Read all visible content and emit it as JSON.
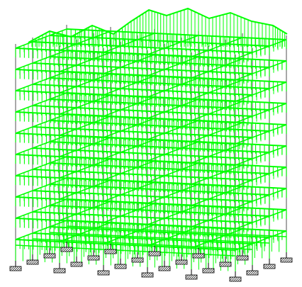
{
  "viewport": {
    "background": "#ffffff"
  },
  "model": {
    "view": "3d-isometric",
    "stories": 10,
    "grid_lines_x": 6,
    "grid_lines_y": 4,
    "load_color": "#00ff00",
    "member_color": "#6f6f6f",
    "support_fill": "#ffffff",
    "support_hatch": "#000000",
    "supports": {
      "count": 24,
      "type": "fixed-support-icon"
    }
  }
}
